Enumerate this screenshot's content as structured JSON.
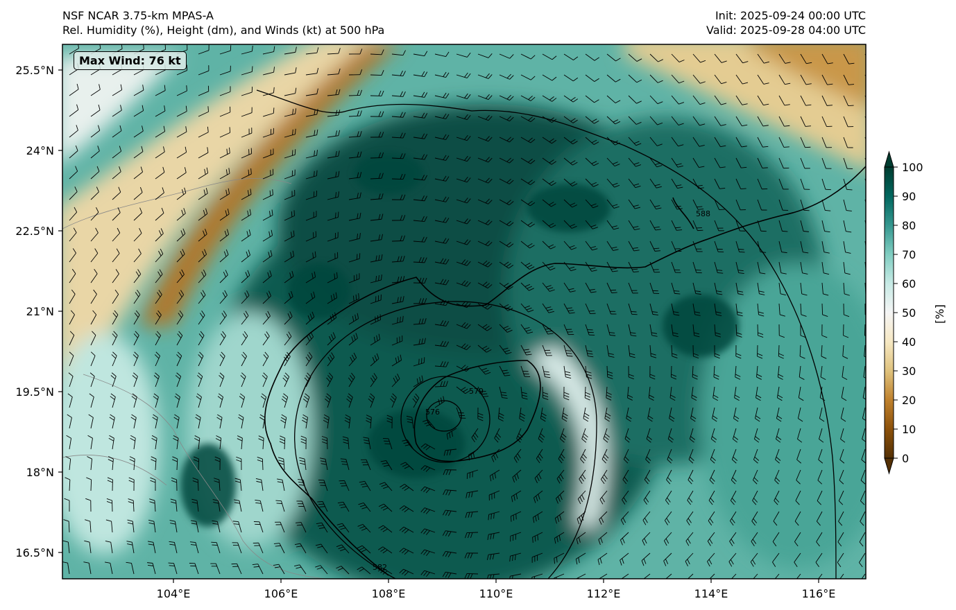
{
  "header": {
    "left_line1": "NSF NCAR 3.75-km MPAS-A",
    "left_line2": "Rel. Humidity (%), Height (dm), and Winds (kt) at 500 hPa",
    "right_line1": "Init: 2025-09-24 00:00 UTC",
    "right_line2": "Valid: 2025-09-28 04:00 UTC"
  },
  "annotation": {
    "max_wind": "Max Wind: 76 kt"
  },
  "axes": {
    "lon_ticks": [
      "104°E",
      "106°E",
      "108°E",
      "110°E",
      "112°E",
      "114°E",
      "116°E"
    ],
    "lat_ticks": [
      "25.5°N",
      "24°N",
      "22.5°N",
      "21°N",
      "19.5°N",
      "18°N",
      "16.5°N"
    ],
    "lon_range": [
      102.0,
      117.0
    ],
    "lat_range": [
      16.0,
      26.0
    ]
  },
  "colorbar": {
    "label": "[%]",
    "ticks": [
      "100",
      "90",
      "80",
      "70",
      "60",
      "50",
      "40",
      "30",
      "20",
      "10",
      "0"
    ],
    "range": [
      0,
      100
    ],
    "colors": [
      "#543005",
      "#8c510a",
      "#bf812d",
      "#dfc27d",
      "#f6e8c3",
      "#f5f5f5",
      "#c7eae5",
      "#80cdc1",
      "#35978f",
      "#01665e",
      "#003c30"
    ]
  },
  "contours": {
    "height_labels": [
      "576",
      "579",
      "582",
      "588"
    ],
    "center": {
      "lon": 109.0,
      "lat": 19.0
    }
  },
  "icons": {
    "wind_barb": "wind-barb-icon"
  },
  "chart_data": {
    "type": "heatmap",
    "variable": "Rel. Humidity (%)",
    "overlays": [
      "Height (dm)",
      "Winds (kt)"
    ],
    "xlim": [
      102.0,
      117.0
    ],
    "ylim": [
      16.0,
      26.0
    ],
    "colorbar_range": [
      0,
      100
    ],
    "max_wind_kt": 76,
    "height_contours_dm": [
      576,
      579,
      582,
      588
    ],
    "cyclone_center": {
      "lon": 109.0,
      "lat": 19.0
    }
  }
}
